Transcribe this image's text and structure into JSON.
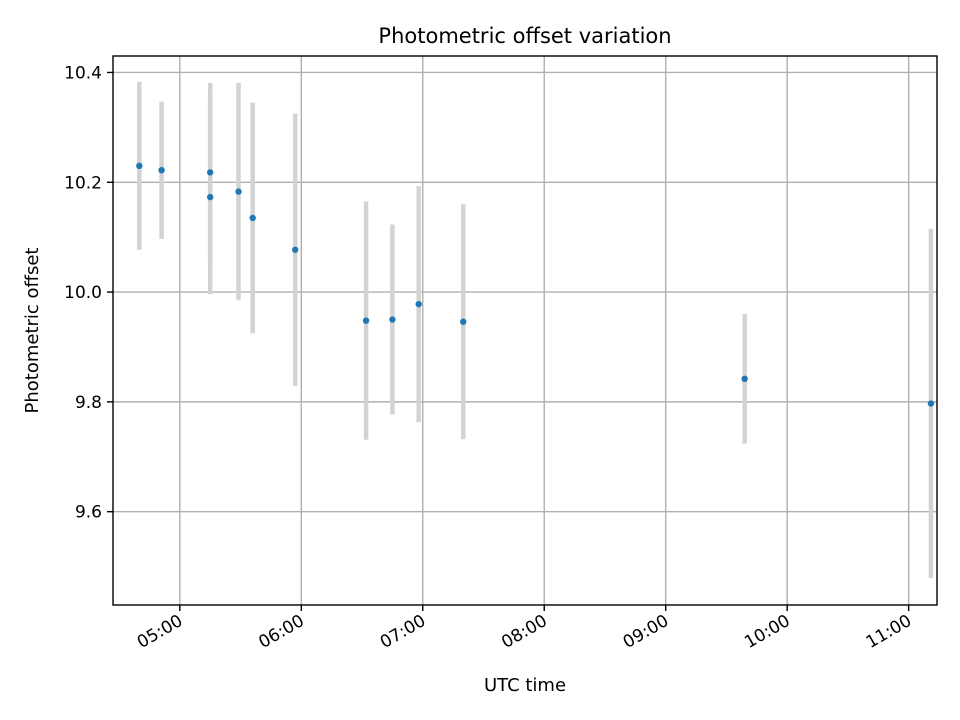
{
  "chart_data": {
    "type": "scatter",
    "title": "Photometric offset variation",
    "xlabel": "UTC time",
    "ylabel": "Photometric offset",
    "x_ticks": [
      "05:00",
      "06:00",
      "07:00",
      "08:00",
      "09:00",
      "10:00",
      "11:00"
    ],
    "y_ticks": [
      "9.6",
      "9.8",
      "10.0",
      "10.2",
      "10.4"
    ],
    "xlim": [
      "04:27",
      "11:14"
    ],
    "ylim": [
      9.43,
      10.43
    ],
    "grid": true,
    "colors": {
      "points": "#1f77b4",
      "errorbars": "#d3d3d3",
      "grid": "#b0b0b0"
    },
    "points": [
      {
        "x": "04:40",
        "y": 10.23,
        "yerr": 0.153
      },
      {
        "x": "04:51",
        "y": 10.222,
        "yerr": 0.125
      },
      {
        "x": "05:15",
        "y": 10.218,
        "yerr": 0.163
      },
      {
        "x": "05:15",
        "y": 10.173,
        "yerr": 0.177
      },
      {
        "x": "05:29",
        "y": 10.183,
        "yerr": 0.198
      },
      {
        "x": "05:36",
        "y": 10.135,
        "yerr": 0.21
      },
      {
        "x": "05:57",
        "y": 10.077,
        "yerr": 0.248
      },
      {
        "x": "06:32",
        "y": 9.948,
        "yerr": 0.217
      },
      {
        "x": "06:45",
        "y": 9.95,
        "yerr": 0.173
      },
      {
        "x": "06:58",
        "y": 9.978,
        "yerr": 0.215
      },
      {
        "x": "07:20",
        "y": 9.946,
        "yerr": 0.214
      },
      {
        "x": "09:39",
        "y": 9.842,
        "yerr": 0.118
      },
      {
        "x": "11:11",
        "y": 9.797,
        "yerr": 0.318
      }
    ]
  }
}
